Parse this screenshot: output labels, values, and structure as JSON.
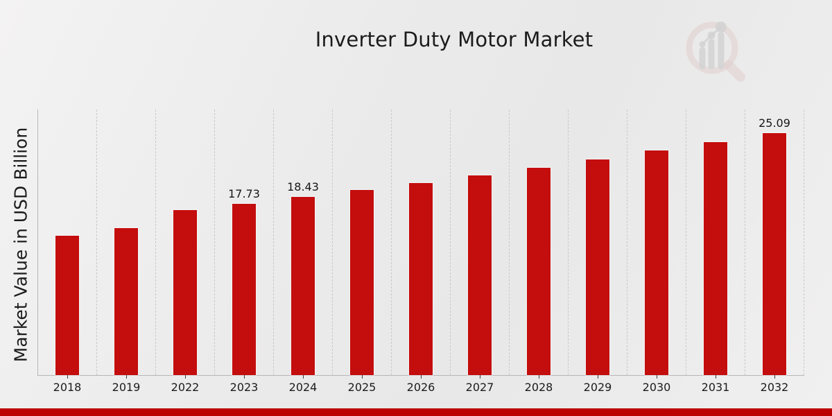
{
  "header": {
    "title": "Inverter Duty Motor Market"
  },
  "axes": {
    "y_label": "Market Value in USD Billion"
  },
  "chart_data": {
    "type": "bar",
    "title": "Inverter Duty Motor Market",
    "xlabel": "",
    "ylabel": "Market Value in USD Billion",
    "categories": [
      "2018",
      "2019",
      "2022",
      "2023",
      "2024",
      "2025",
      "2026",
      "2027",
      "2028",
      "2029",
      "2030",
      "2031",
      "2032"
    ],
    "values": [
      14.45,
      15.2,
      17.09,
      17.73,
      18.43,
      19.15,
      19.91,
      20.69,
      21.5,
      22.35,
      23.23,
      24.14,
      25.09
    ],
    "data_labels": {
      "2023": "17.73",
      "2024": "18.43",
      "2032": "25.09"
    },
    "ylim": [
      0,
      27.57
    ],
    "grid": "vertical dashed lines between categories, no horizontal gridlines",
    "legend": null,
    "bar_color": "#c40d0d",
    "axis_color": "#b6b6b6",
    "gridline_color": "#c9c9c9"
  },
  "logo": {
    "ring_color": "#d9b8b6",
    "glyph_color": "#bdbdbd"
  },
  "footer": {
    "band_color": "#bd0000"
  }
}
